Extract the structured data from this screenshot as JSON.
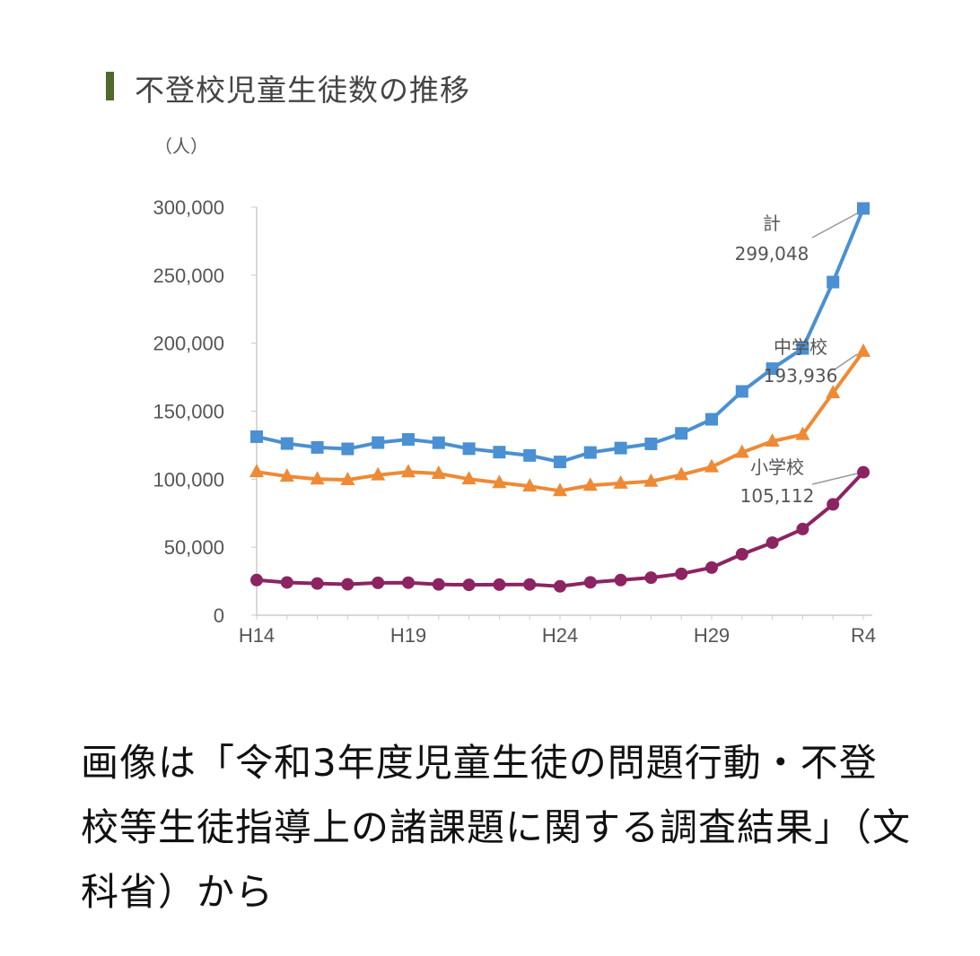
{
  "chart_data": {
    "type": "line",
    "title": "不登校児童生徒数の推移",
    "ylabel": "（人）",
    "xlabel": "",
    "ylim": [
      0,
      300000
    ],
    "y_ticks": [
      0,
      50000,
      100000,
      150000,
      200000,
      250000,
      300000
    ],
    "y_tick_labels": [
      "0",
      "50,000",
      "100,000",
      "150,000",
      "200,000",
      "250,000",
      "300,000"
    ],
    "x": [
      "H14",
      "H15",
      "H16",
      "H17",
      "H18",
      "H19",
      "H20",
      "H21",
      "H22",
      "H23",
      "H24",
      "H25",
      "H26",
      "H27",
      "H28",
      "H29",
      "H30",
      "R1",
      "R2",
      "R3",
      "R4"
    ],
    "x_tick_labels": [
      "H14",
      "H19",
      "H24",
      "H29",
      "R4"
    ],
    "grid": false,
    "series": [
      {
        "name": "計",
        "color": "#4a90d2",
        "marker": "square",
        "values": [
          131252,
          126226,
          123358,
          122287,
          126894,
          129255,
          126805,
          122432,
          119891,
          117458,
          112689,
          119617,
          122897,
          125991,
          133683,
          144031,
          164528,
          181272,
          196127,
          244940,
          299048
        ],
        "annotation": "299,048"
      },
      {
        "name": "中学校",
        "color": "#ee8a35",
        "marker": "triangle",
        "values": [
          105383,
          102149,
          100040,
          99578,
          103069,
          105328,
          104153,
          100105,
          97428,
          94836,
          91446,
          95442,
          97033,
          98408,
          103235,
          108999,
          119687,
          127922,
          132777,
          163442,
          193936
        ],
        "annotation": "193,936"
      },
      {
        "name": "小学校",
        "color": "#8c2462",
        "marker": "circle",
        "values": [
          25869,
          24077,
          23318,
          22709,
          23825,
          23927,
          22652,
          22327,
          22463,
          22622,
          21243,
          24175,
          25864,
          27583,
          30448,
          35032,
          44841,
          53350,
          63350,
          81498,
          105112
        ],
        "annotation": "105,112"
      }
    ]
  },
  "caption": "画像は「令和3年度児童生徒の問題行動・不登校等生徒指導上の諸課題に関する調査結果」（文科省）から"
}
